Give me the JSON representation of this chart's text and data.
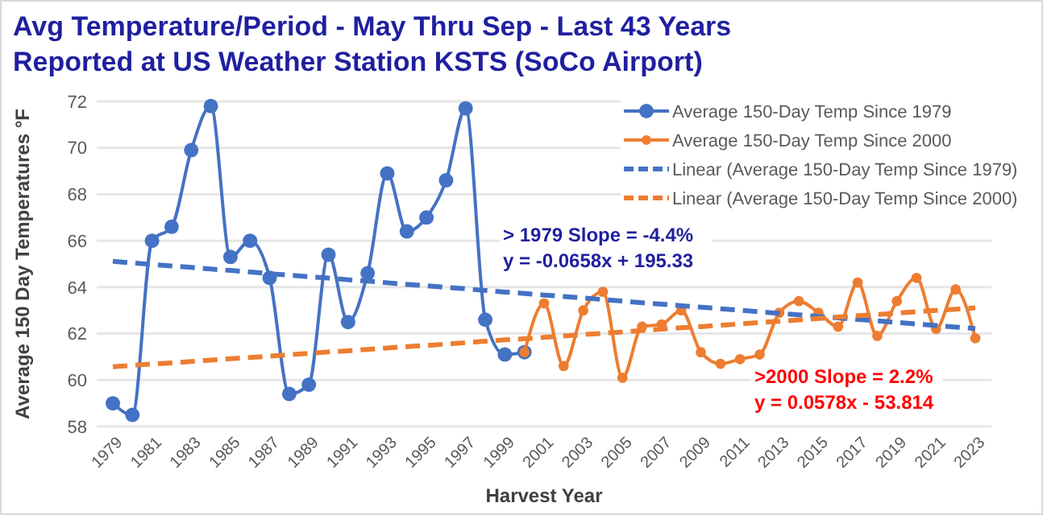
{
  "chart_data": {
    "type": "line",
    "title": "Avg Temperature/Period - May Thru Sep - Last 43 Years",
    "subtitle": "Reported at US Weather Station KSTS (SoCo Airport)",
    "xlabel": "Harvest Year",
    "ylabel": "Average 150 Day Temperatures °F",
    "categories": [
      "1979",
      null,
      "1981",
      null,
      "1983",
      null,
      "1985",
      null,
      "1987",
      null,
      "1989",
      null,
      "1991",
      null,
      "1993",
      null,
      "1995",
      null,
      "1997",
      null,
      "1999",
      null,
      "2001",
      null,
      "2003",
      null,
      "2005",
      null,
      "2007",
      null,
      "2009",
      null,
      "2011",
      null,
      "2013",
      null,
      "2015",
      null,
      "2017",
      null,
      "2019",
      null,
      "2021",
      null,
      "2023"
    ],
    "series": [
      {
        "name": "Average 150-Day Temp Since 1979",
        "color": "#4472c4",
        "marker": "circle",
        "line_style": "solid",
        "values": [
          59.0,
          58.5,
          66.0,
          66.6,
          69.9,
          71.8,
          65.3,
          66.0,
          64.4,
          59.4,
          59.8,
          65.4,
          62.5,
          64.6,
          68.9,
          66.4,
          67.0,
          68.6,
          71.7,
          62.6,
          61.1,
          61.2,
          null,
          null,
          null,
          null,
          null,
          null,
          null,
          null,
          null,
          null,
          null,
          null,
          null,
          null,
          null,
          null,
          null,
          null,
          null,
          null,
          null,
          null,
          null
        ]
      },
      {
        "name": "Average 150-Day Temp Since 2000",
        "color": "#ed7d31",
        "marker": "circle",
        "line_style": "solid",
        "values": [
          null,
          null,
          null,
          null,
          null,
          null,
          null,
          null,
          null,
          null,
          null,
          null,
          null,
          null,
          null,
          null,
          null,
          null,
          null,
          null,
          null,
          61.2,
          63.3,
          60.6,
          63.0,
          63.8,
          60.1,
          62.3,
          62.4,
          63.0,
          61.2,
          60.7,
          60.9,
          61.1,
          62.9,
          63.4,
          62.9,
          62.3,
          64.2,
          61.9,
          63.4,
          64.4,
          62.2,
          63.9,
          61.8
        ]
      },
      {
        "name": "Linear (Average 150-Day Temp Since 1979)",
        "color": "#4472c4",
        "marker": "none",
        "line_style": "dashed",
        "values": [
          65.11,
          65.04,
          64.98,
          64.91,
          64.85,
          64.78,
          64.72,
          64.65,
          64.58,
          64.52,
          64.45,
          64.39,
          64.32,
          64.26,
          64.19,
          64.12,
          64.06,
          63.99,
          63.93,
          63.86,
          63.79,
          63.73,
          63.66,
          63.6,
          63.53,
          63.47,
          63.4,
          63.33,
          63.27,
          63.2,
          63.14,
          63.07,
          63.01,
          62.94,
          62.87,
          62.81,
          62.74,
          62.68,
          62.61,
          62.55,
          62.48,
          62.41,
          62.35,
          62.28,
          62.22
        ]
      },
      {
        "name": "Linear (Average 150-Day Temp Since 2000)",
        "color": "#ed7d31",
        "marker": "none",
        "line_style": "dashed",
        "values": [
          60.57,
          60.63,
          60.69,
          60.74,
          60.8,
          60.86,
          60.92,
          60.97,
          61.03,
          61.09,
          61.15,
          61.21,
          61.26,
          61.32,
          61.38,
          61.44,
          61.49,
          61.55,
          61.61,
          61.67,
          61.73,
          61.78,
          61.84,
          61.9,
          61.96,
          62.01,
          62.07,
          62.13,
          62.19,
          62.25,
          62.3,
          62.36,
          62.42,
          62.48,
          62.53,
          62.59,
          62.65,
          62.71,
          62.77,
          62.82,
          62.88,
          62.94,
          63.0,
          63.05,
          63.11
        ]
      }
    ],
    "annotations": [
      "> 1979 Slope = -4.4%",
      "y = -0.0658x + 195.33",
      ">2000 Slope = 2.2%",
      "y = 0.0578x - 53.814"
    ],
    "ylim": [
      58,
      72
    ],
    "yticks": [
      58,
      60,
      62,
      64,
      66,
      68,
      70,
      72
    ],
    "grid": "y",
    "legend": "top right"
  }
}
